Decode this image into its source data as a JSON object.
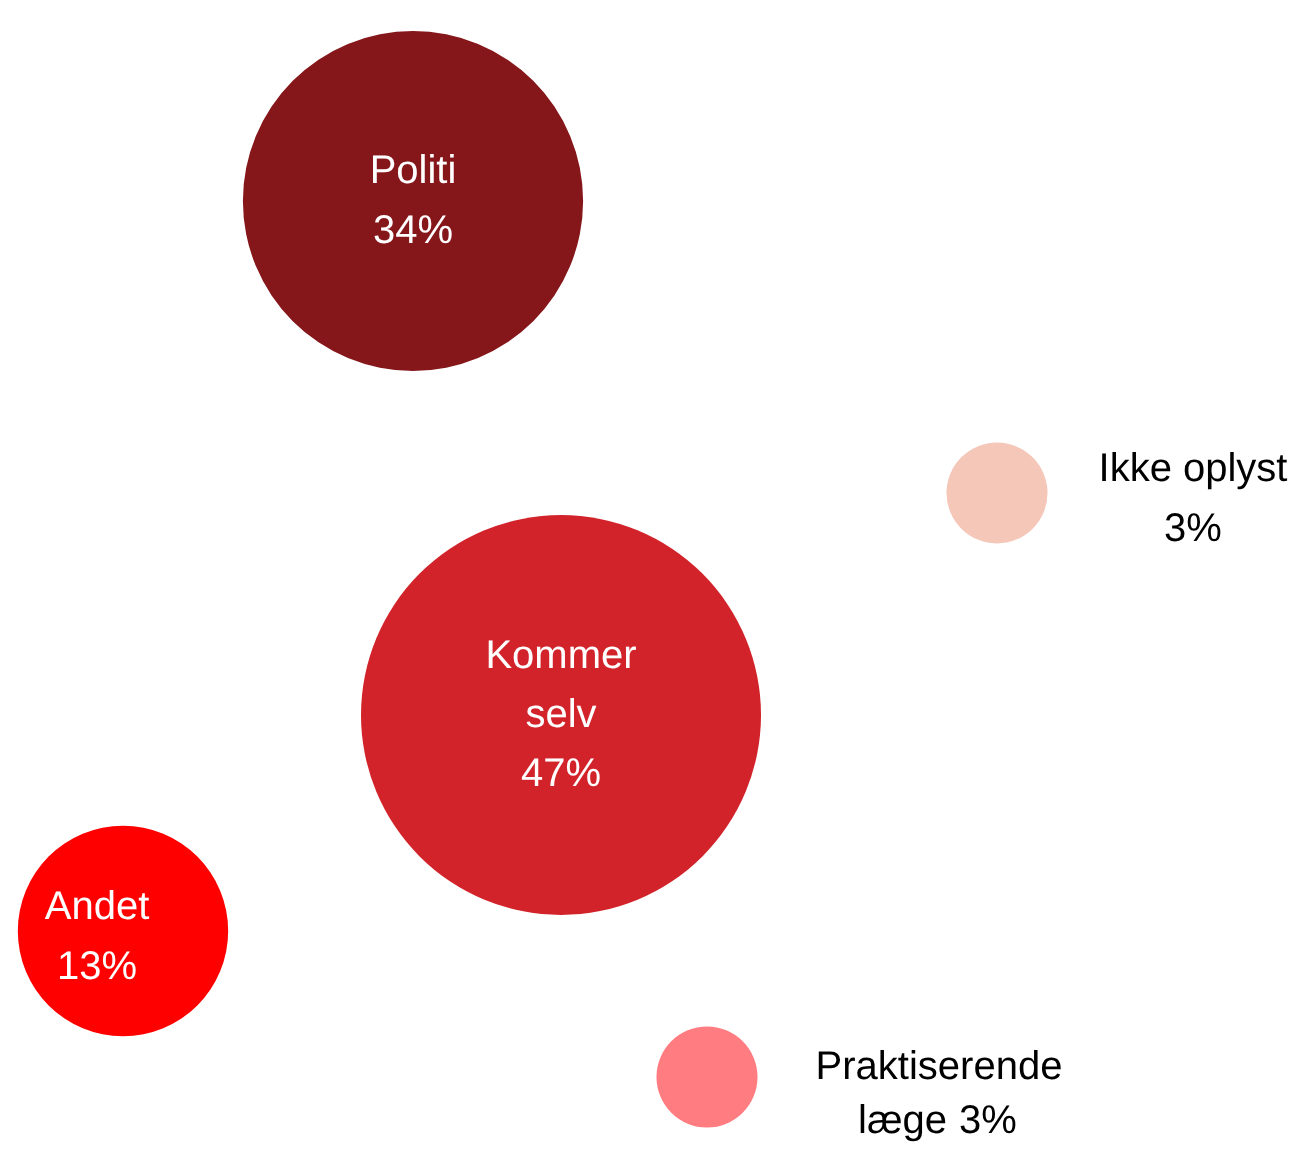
{
  "chart_data": {
    "type": "other",
    "categories": [
      "Politi",
      "Ikke oplyst",
      "Kommer selv",
      "Andet",
      "Praktiserende læge"
    ],
    "values": [
      34,
      3,
      47,
      13,
      3
    ],
    "value_labels": [
      "34%",
      "3%",
      "47%",
      "13%",
      "3%"
    ],
    "colors": [
      "#85161a",
      "#f4c7b8",
      "#d2232a",
      "#ff0000",
      "#ff7c80"
    ]
  }
}
